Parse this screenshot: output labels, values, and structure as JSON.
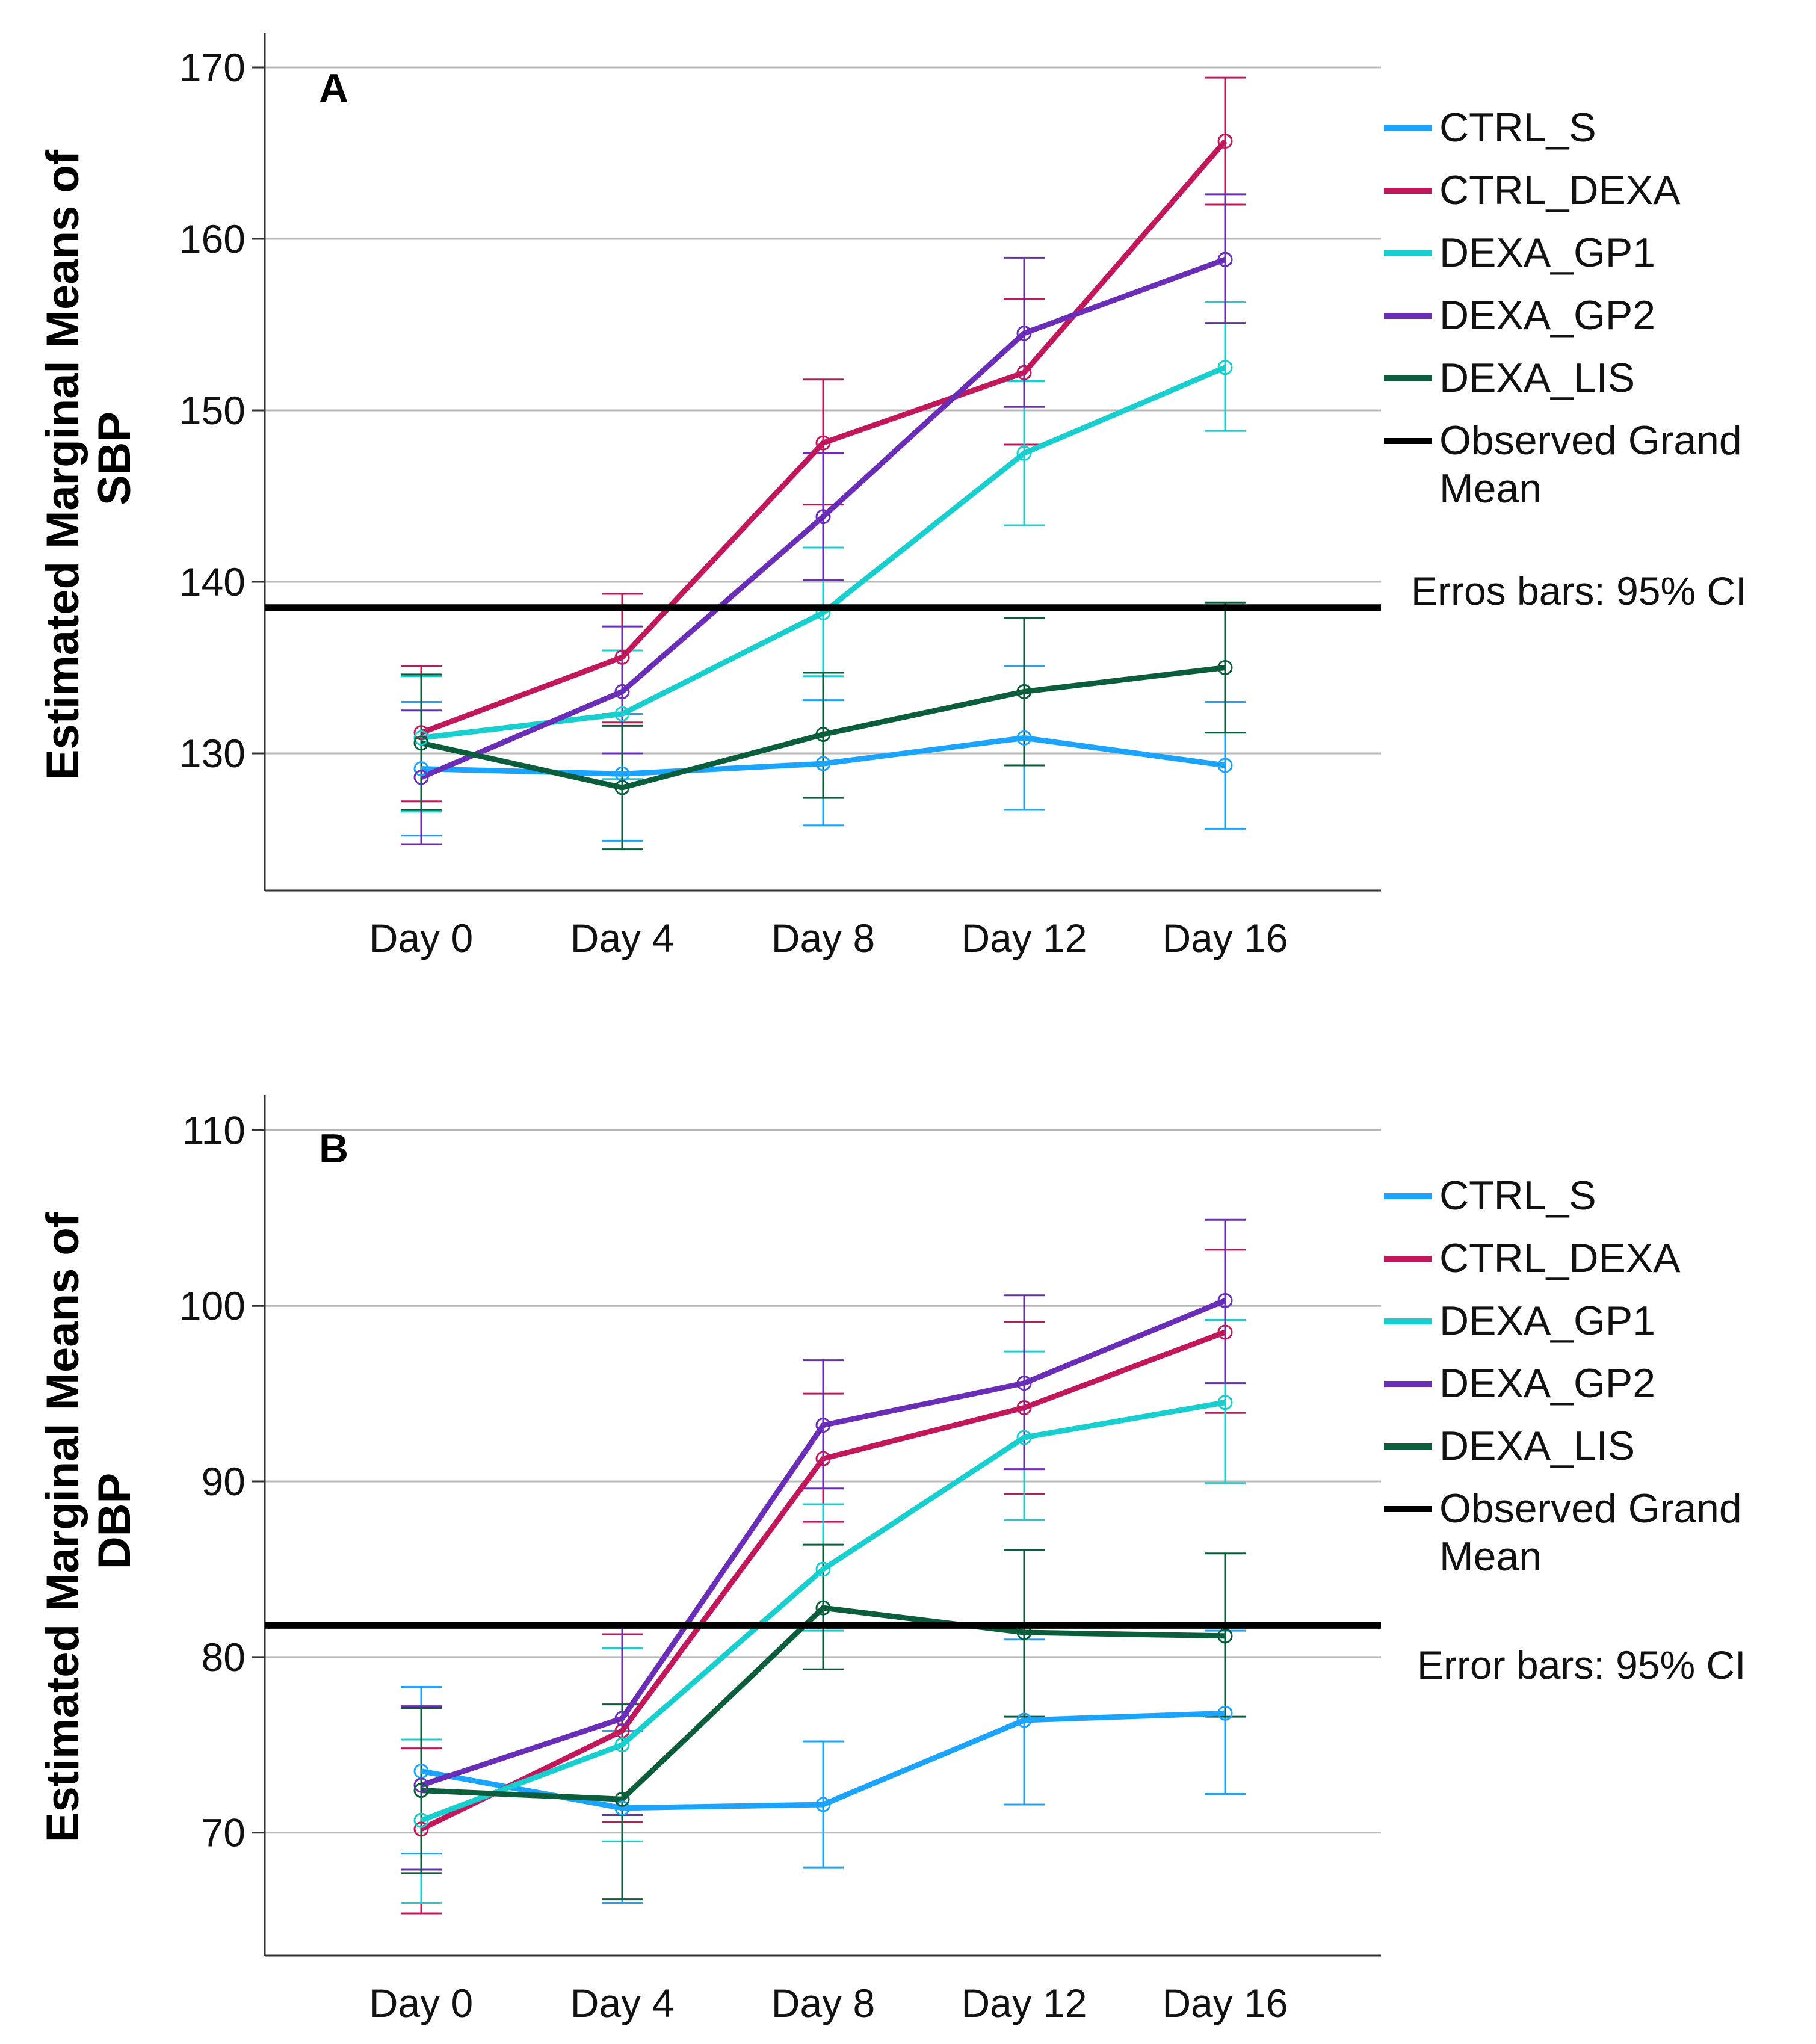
{
  "chart_data": [
    {
      "type": "line",
      "panel_label": "A",
      "ylabel_line1": "Estimated Marginal Means of",
      "ylabel_line2": "SBP",
      "xlabel": "",
      "categories": [
        "Day 0",
        "Day 4",
        "Day 8",
        "Day 12",
        "Day 16"
      ],
      "ylim": [
        122,
        172
      ],
      "yticks": [
        130,
        140,
        150,
        160,
        170
      ],
      "grid": true,
      "grand_mean": 138.5,
      "grand_mean_label": "Observed Grand Mean",
      "error_bar_note": "Erros bars: 95% CI",
      "legend_position": "right",
      "series": [
        {
          "name": "CTRL_S",
          "color": "#1aa3ff",
          "values": [
            129.1,
            128.8,
            129.4,
            130.9,
            129.3
          ],
          "ci_low": [
            125.2,
            124.9,
            125.8,
            126.7,
            125.6
          ],
          "ci_high": [
            133.0,
            132.3,
            133.1,
            135.1,
            133.0
          ]
        },
        {
          "name": "CTRL_DEXA",
          "color": "#c2185b",
          "values": [
            131.2,
            135.6,
            148.1,
            152.2,
            165.7
          ],
          "ci_low": [
            127.2,
            131.8,
            144.5,
            148.0,
            162.0
          ],
          "ci_high": [
            135.1,
            139.3,
            151.8,
            156.5,
            169.4
          ]
        },
        {
          "name": "DEXA_GP1",
          "color": "#17cfcf",
          "values": [
            130.9,
            132.3,
            138.2,
            147.5,
            152.5
          ],
          "ci_low": [
            126.6,
            128.5,
            134.5,
            143.3,
            148.8
          ],
          "ci_high": [
            134.5,
            136.0,
            142.0,
            151.7,
            156.3
          ]
        },
        {
          "name": "DEXA_GP2",
          "color": "#6a2db8",
          "values": [
            128.6,
            133.6,
            143.8,
            154.5,
            158.8
          ],
          "ci_low": [
            124.7,
            130.0,
            140.1,
            150.2,
            155.1
          ],
          "ci_high": [
            132.5,
            137.4,
            147.5,
            158.9,
            162.6
          ]
        },
        {
          "name": "DEXA_LIS",
          "color": "#0b5e3b",
          "values": [
            130.6,
            128.0,
            131.1,
            133.6,
            135.0
          ],
          "ci_low": [
            126.7,
            124.4,
            127.4,
            129.3,
            131.2
          ],
          "ci_high": [
            134.6,
            131.6,
            134.7,
            137.9,
            138.8
          ]
        }
      ]
    },
    {
      "type": "line",
      "panel_label": "B",
      "ylabel_line1": "Estimated Marginal Means of",
      "ylabel_line2": "DBP",
      "xlabel": "",
      "categories": [
        "Day 0",
        "Day 4",
        "Day 8",
        "Day 12",
        "Day 16"
      ],
      "ylim": [
        63,
        112
      ],
      "yticks": [
        70,
        80,
        90,
        100,
        110
      ],
      "grid": true,
      "grand_mean": 81.8,
      "grand_mean_label": "Observed Grand Mean",
      "error_bar_note": "Error bars: 95% CI",
      "legend_position": "right",
      "series": [
        {
          "name": "CTRL_S",
          "color": "#1aa3ff",
          "values": [
            73.5,
            71.4,
            71.6,
            76.4,
            76.8
          ],
          "ci_low": [
            68.8,
            66.0,
            68.0,
            71.6,
            72.2
          ],
          "ci_high": [
            78.3,
            75.8,
            75.2,
            81.0,
            81.5
          ]
        },
        {
          "name": "CTRL_DEXA",
          "color": "#c2185b",
          "values": [
            70.2,
            75.8,
            91.3,
            94.2,
            98.5
          ],
          "ci_low": [
            65.4,
            70.6,
            87.7,
            89.3,
            93.9
          ],
          "ci_high": [
            74.8,
            81.3,
            95.0,
            99.1,
            103.2
          ]
        },
        {
          "name": "DEXA_GP1",
          "color": "#17cfcf",
          "values": [
            70.7,
            75.0,
            85.0,
            92.5,
            94.5
          ],
          "ci_low": [
            66.0,
            69.5,
            81.5,
            87.8,
            89.9
          ],
          "ci_high": [
            75.3,
            80.5,
            88.7,
            97.4,
            99.2
          ]
        },
        {
          "name": "DEXA_GP2",
          "color": "#6a2db8",
          "values": [
            72.7,
            76.5,
            93.2,
            95.6,
            100.3
          ],
          "ci_low": [
            67.9,
            71.0,
            89.6,
            90.7,
            95.6
          ],
          "ci_high": [
            77.2,
            81.8,
            96.9,
            100.6,
            104.9
          ]
        },
        {
          "name": "DEXA_LIS",
          "color": "#0b5e3b",
          "values": [
            72.4,
            71.9,
            82.8,
            81.4,
            81.2
          ],
          "ci_low": [
            67.7,
            66.2,
            79.3,
            76.6,
            76.6
          ],
          "ci_high": [
            77.1,
            77.3,
            86.4,
            86.1,
            85.9
          ]
        }
      ]
    }
  ]
}
